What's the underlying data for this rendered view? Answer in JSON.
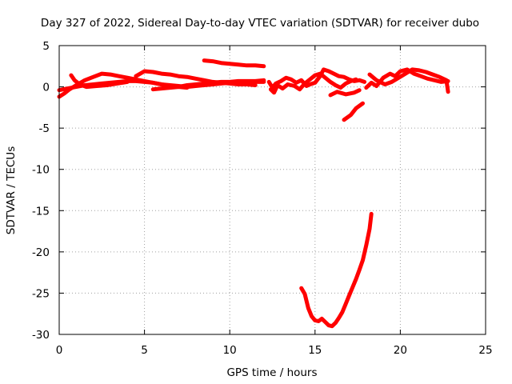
{
  "chart_data": {
    "type": "scatter",
    "title": "Day 327 of 2022, Sidereal Day-to-day VTEC variation (SDTVAR) for receiver dubo",
    "xlabel": "GPS time / hours",
    "ylabel": "SDTVAR / TECUs",
    "xlim": [
      0,
      25
    ],
    "ylim": [
      -30,
      5
    ],
    "x_ticks": [
      0,
      5,
      10,
      15,
      20,
      25
    ],
    "y_ticks": [
      5,
      0,
      -5,
      -10,
      -15,
      -20,
      -25,
      -30
    ],
    "x_tick_labels": [
      "0",
      "5",
      "10",
      "15",
      "20",
      "25"
    ],
    "y_tick_labels": [
      "5",
      "0",
      "-5",
      "-10",
      "-15",
      "-20",
      "-25",
      "-30"
    ],
    "grid": true,
    "marker_color": "#ff0000",
    "series": [
      {
        "points": [
          [
            0.0,
            -1.2
          ],
          [
            0.3,
            -0.8
          ],
          [
            0.6,
            -0.3
          ],
          [
            1.0,
            0.2
          ],
          [
            1.5,
            0.8
          ],
          [
            2.0,
            1.2
          ],
          [
            2.5,
            1.6
          ],
          [
            3.0,
            1.5
          ],
          [
            3.5,
            1.3
          ],
          [
            4.0,
            1.1
          ],
          [
            4.5,
            0.9
          ],
          [
            5.0,
            0.7
          ],
          [
            5.5,
            0.5
          ],
          [
            6.0,
            0.3
          ],
          [
            6.5,
            0.1
          ],
          [
            7.0,
            0.0
          ],
          [
            7.5,
            -0.1
          ]
        ]
      },
      {
        "points": [
          [
            0.0,
            -0.4
          ],
          [
            0.5,
            -0.2
          ],
          [
            1.0,
            0.0
          ],
          [
            1.5,
            0.2
          ],
          [
            2.0,
            0.3
          ],
          [
            2.5,
            0.4
          ],
          [
            3.0,
            0.5
          ],
          [
            3.5,
            0.6
          ],
          [
            4.0,
            0.7
          ],
          [
            4.5,
            0.7
          ],
          [
            5.0,
            0.6
          ],
          [
            5.5,
            0.5
          ],
          [
            6.0,
            0.3
          ],
          [
            6.5,
            0.2
          ],
          [
            7.0,
            0.1
          ],
          [
            7.5,
            0.0
          ],
          [
            8.0,
            0.1
          ],
          [
            8.5,
            0.2
          ],
          [
            9.0,
            0.3
          ],
          [
            9.5,
            0.4
          ],
          [
            10.0,
            0.5
          ],
          [
            10.5,
            0.5
          ],
          [
            11.0,
            0.6
          ],
          [
            11.5,
            0.6
          ],
          [
            12.0,
            0.6
          ]
        ]
      },
      {
        "points": [
          [
            0.7,
            1.4
          ],
          [
            0.9,
            0.8
          ],
          [
            1.2,
            0.3
          ],
          [
            1.6,
            0.0
          ],
          [
            2.2,
            0.1
          ],
          [
            2.8,
            0.2
          ],
          [
            3.4,
            0.4
          ],
          [
            4.0,
            0.6
          ]
        ]
      },
      {
        "points": [
          [
            4.5,
            1.3
          ],
          [
            5.0,
            1.9
          ],
          [
            5.5,
            1.8
          ],
          [
            6.0,
            1.6
          ],
          [
            6.5,
            1.5
          ],
          [
            7.0,
            1.3
          ],
          [
            7.5,
            1.2
          ],
          [
            8.0,
            1.0
          ],
          [
            8.5,
            0.8
          ],
          [
            9.0,
            0.6
          ],
          [
            9.5,
            0.5
          ],
          [
            10.0,
            0.4
          ],
          [
            10.5,
            0.3
          ],
          [
            11.0,
            0.3
          ],
          [
            11.5,
            0.2
          ]
        ]
      },
      {
        "points": [
          [
            5.5,
            -0.3
          ],
          [
            6.0,
            -0.2
          ],
          [
            6.5,
            -0.1
          ],
          [
            7.0,
            0.0
          ],
          [
            7.5,
            0.2
          ],
          [
            8.0,
            0.3
          ],
          [
            8.5,
            0.4
          ],
          [
            9.0,
            0.5
          ],
          [
            9.5,
            0.6
          ],
          [
            10.0,
            0.6
          ],
          [
            10.5,
            0.7
          ],
          [
            11.0,
            0.7
          ],
          [
            11.5,
            0.7
          ],
          [
            12.0,
            0.8
          ]
        ]
      },
      {
        "points": [
          [
            8.5,
            3.2
          ],
          [
            9.0,
            3.1
          ],
          [
            9.5,
            2.9
          ],
          [
            10.0,
            2.8
          ],
          [
            10.5,
            2.7
          ],
          [
            11.0,
            2.6
          ],
          [
            11.5,
            2.6
          ],
          [
            12.0,
            2.5
          ]
        ]
      },
      {
        "points": [
          [
            12.3,
            0.6
          ],
          [
            12.5,
            -0.1
          ],
          [
            12.7,
            0.4
          ],
          [
            13.0,
            0.7
          ],
          [
            13.3,
            1.1
          ],
          [
            13.6,
            0.9
          ],
          [
            13.9,
            0.5
          ],
          [
            14.2,
            0.8
          ],
          [
            14.5,
            0.1
          ],
          [
            14.7,
            0.3
          ],
          [
            15.0,
            0.5
          ],
          [
            15.3,
            1.3
          ],
          [
            15.5,
            2.1
          ],
          [
            15.8,
            1.9
          ],
          [
            16.1,
            1.6
          ],
          [
            16.4,
            1.3
          ],
          [
            16.7,
            1.2
          ],
          [
            17.0,
            0.9
          ],
          [
            17.3,
            0.7
          ],
          [
            17.6,
            0.8
          ],
          [
            17.9,
            0.6
          ]
        ]
      },
      {
        "points": [
          [
            12.4,
            -0.3
          ],
          [
            12.6,
            -0.7
          ],
          [
            12.8,
            0.2
          ],
          [
            13.1,
            -0.2
          ],
          [
            13.4,
            0.3
          ],
          [
            13.8,
            0.1
          ],
          [
            14.1,
            -0.3
          ],
          [
            14.4,
            0.4
          ],
          [
            14.7,
            0.9
          ],
          [
            15.0,
            1.4
          ],
          [
            15.3,
            1.6
          ],
          [
            15.6,
            1.1
          ],
          [
            15.9,
            0.6
          ],
          [
            16.2,
            0.2
          ],
          [
            16.5,
            -0.1
          ],
          [
            16.8,
            0.4
          ],
          [
            17.1,
            0.7
          ],
          [
            17.4,
            0.9
          ]
        ]
      },
      {
        "points": [
          [
            15.9,
            -1.0
          ],
          [
            16.3,
            -0.6
          ],
          [
            16.8,
            -0.9
          ],
          [
            17.3,
            -0.7
          ],
          [
            17.6,
            -0.4
          ]
        ]
      },
      {
        "points": [
          [
            16.7,
            -4.0
          ],
          [
            17.1,
            -3.4
          ],
          [
            17.4,
            -2.6
          ],
          [
            17.8,
            -2.0
          ]
        ]
      },
      {
        "points": [
          [
            18.0,
            -0.1
          ],
          [
            18.3,
            0.5
          ],
          [
            18.6,
            0.1
          ],
          [
            19.0,
            1.1
          ],
          [
            19.4,
            1.6
          ],
          [
            19.7,
            1.3
          ],
          [
            20.0,
            1.9
          ],
          [
            20.4,
            2.1
          ],
          [
            20.8,
            1.6
          ],
          [
            21.2,
            1.3
          ],
          [
            21.6,
            1.0
          ],
          [
            22.0,
            0.8
          ],
          [
            22.4,
            0.6
          ],
          [
            22.8,
            0.7
          ]
        ]
      },
      {
        "points": [
          [
            18.2,
            1.5
          ],
          [
            18.6,
            0.8
          ],
          [
            19.1,
            0.3
          ],
          [
            19.5,
            0.6
          ],
          [
            19.9,
            1.1
          ],
          [
            20.3,
            1.6
          ],
          [
            20.7,
            2.1
          ],
          [
            21.1,
            2.0
          ],
          [
            21.5,
            1.8
          ],
          [
            21.9,
            1.5
          ],
          [
            22.3,
            1.2
          ],
          [
            22.7,
            0.8
          ],
          [
            22.8,
            -0.6
          ]
        ]
      },
      {
        "points": [
          [
            14.2,
            -24.4
          ],
          [
            14.4,
            -25.1
          ],
          [
            14.6,
            -26.8
          ],
          [
            14.8,
            -27.8
          ],
          [
            15.0,
            -28.3
          ],
          [
            15.2,
            -28.4
          ],
          [
            15.4,
            -28.1
          ],
          [
            15.6,
            -28.5
          ],
          [
            15.8,
            -28.9
          ],
          [
            16.0,
            -29.0
          ],
          [
            16.2,
            -28.6
          ],
          [
            16.4,
            -28.0
          ],
          [
            16.6,
            -27.3
          ],
          [
            16.8,
            -26.3
          ],
          [
            17.0,
            -25.3
          ],
          [
            17.2,
            -24.3
          ],
          [
            17.4,
            -23.3
          ],
          [
            17.6,
            -22.2
          ],
          [
            17.8,
            -21.0
          ],
          [
            18.0,
            -19.2
          ],
          [
            18.2,
            -17.2
          ],
          [
            18.3,
            -15.4
          ]
        ]
      }
    ]
  }
}
